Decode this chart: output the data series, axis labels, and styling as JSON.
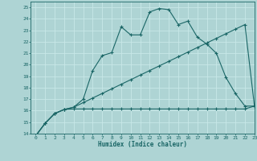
{
  "xlabel": "Humidex (Indice chaleur)",
  "xlim": [
    -0.5,
    23
  ],
  "ylim": [
    14,
    25.5
  ],
  "xticks": [
    0,
    1,
    2,
    3,
    4,
    5,
    6,
    7,
    8,
    9,
    10,
    11,
    12,
    13,
    14,
    15,
    16,
    17,
    18,
    19,
    20,
    21,
    22,
    23
  ],
  "yticks": [
    14,
    15,
    16,
    17,
    18,
    19,
    20,
    21,
    22,
    23,
    24,
    25
  ],
  "bg_color": "#aed4d4",
  "grid_color": "#c8e8e8",
  "line_color": "#1a6666",
  "line1_x": [
    0,
    1,
    2,
    3,
    4,
    5,
    6,
    7,
    8,
    9,
    10,
    11,
    12,
    13,
    14,
    15,
    16,
    17,
    18,
    19,
    20,
    21,
    22,
    23
  ],
  "line1_y": [
    13.8,
    14.9,
    15.75,
    16.1,
    16.15,
    16.15,
    16.15,
    16.15,
    16.15,
    16.15,
    16.15,
    16.15,
    16.15,
    16.15,
    16.15,
    16.15,
    16.15,
    16.15,
    16.15,
    16.15,
    16.15,
    16.15,
    16.15,
    16.4
  ],
  "line2_x": [
    0,
    1,
    2,
    3,
    4,
    5,
    6,
    7,
    8,
    9,
    10,
    11,
    12,
    13,
    14,
    15,
    16,
    17,
    18,
    19,
    20,
    21,
    22,
    23
  ],
  "line2_y": [
    13.8,
    14.9,
    15.75,
    16.1,
    16.3,
    16.7,
    17.1,
    17.5,
    17.9,
    18.3,
    18.7,
    19.1,
    19.5,
    19.9,
    20.3,
    20.7,
    21.1,
    21.5,
    21.9,
    22.3,
    22.7,
    23.1,
    23.5,
    16.4
  ],
  "line3_x": [
    0,
    1,
    2,
    3,
    4,
    5,
    6,
    7,
    8,
    9,
    10,
    11,
    12,
    13,
    14,
    15,
    16,
    17,
    18,
    19,
    20,
    21,
    22,
    23
  ],
  "line3_y": [
    13.8,
    14.9,
    15.75,
    16.1,
    16.3,
    17.0,
    19.5,
    20.8,
    21.05,
    23.3,
    22.6,
    22.6,
    24.6,
    24.9,
    24.8,
    23.5,
    23.8,
    22.4,
    21.8,
    21.0,
    18.9,
    17.5,
    16.4,
    16.4
  ]
}
